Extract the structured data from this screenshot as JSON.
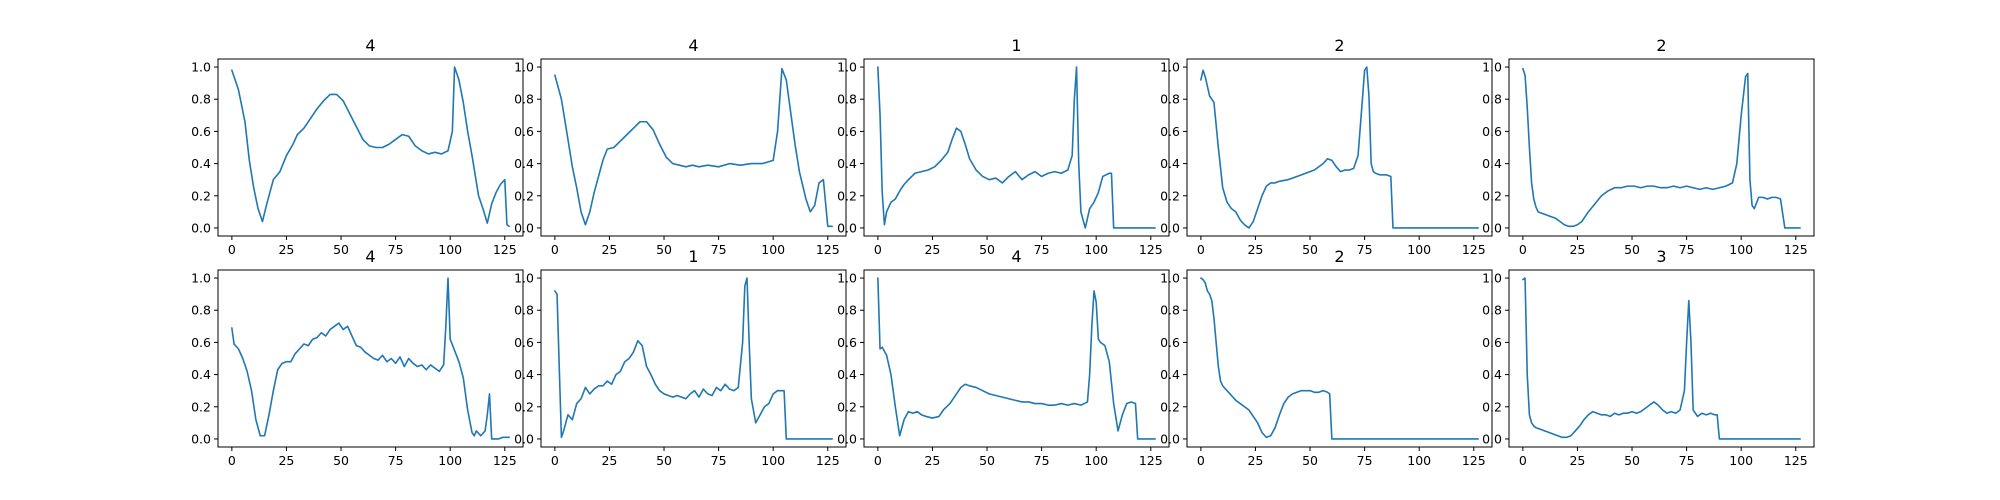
{
  "chart_data": [
    {
      "type": "line",
      "title": "4",
      "xlim": [
        -6.35,
        133.35
      ],
      "ylim": [
        -0.05,
        1.05
      ],
      "xticks": [
        "0",
        "25",
        "50",
        "75",
        "100",
        "125"
      ],
      "yticks": [
        "0.0",
        "0.2",
        "0.4",
        "0.6",
        "0.8",
        "1.0"
      ],
      "grid": false,
      "line_color": "#1f77b4",
      "x": [
        0,
        3,
        6,
        8,
        10,
        12,
        14,
        16,
        19,
        22,
        25,
        28,
        30,
        33,
        36,
        39,
        42,
        45,
        48,
        51,
        54,
        57,
        60,
        63,
        66,
        69,
        72,
        75,
        78,
        81,
        84,
        87,
        90,
        93,
        96,
        99,
        101,
        102,
        104,
        106,
        108,
        110,
        113,
        115,
        117,
        119,
        121,
        123,
        125,
        126,
        127
      ],
      "y": [
        0.98,
        0.86,
        0.66,
        0.42,
        0.25,
        0.12,
        0.04,
        0.15,
        0.3,
        0.35,
        0.45,
        0.52,
        0.58,
        0.62,
        0.68,
        0.74,
        0.79,
        0.83,
        0.83,
        0.79,
        0.71,
        0.63,
        0.55,
        0.51,
        0.5,
        0.5,
        0.52,
        0.55,
        0.58,
        0.57,
        0.51,
        0.48,
        0.46,
        0.47,
        0.46,
        0.48,
        0.6,
        1.0,
        0.92,
        0.78,
        0.6,
        0.45,
        0.2,
        0.12,
        0.03,
        0.15,
        0.22,
        0.27,
        0.3,
        0.02,
        0.01
      ]
    },
    {
      "type": "line",
      "title": "4",
      "xlim": [
        -6.35,
        133.35
      ],
      "ylim": [
        -0.05,
        1.05
      ],
      "xticks": [
        "0",
        "25",
        "50",
        "75",
        "100",
        "125"
      ],
      "yticks": [
        "0.0",
        "0.2",
        "0.4",
        "0.6",
        "0.8",
        "1.0"
      ],
      "grid": false,
      "line_color": "#1f77b4",
      "x": [
        0,
        3,
        6,
        8,
        10,
        12,
        14,
        16,
        18,
        20,
        22,
        24,
        27,
        30,
        33,
        36,
        39,
        42,
        45,
        48,
        51,
        54,
        57,
        60,
        63,
        66,
        70,
        75,
        80,
        85,
        90,
        95,
        100,
        102,
        104,
        106,
        108,
        110,
        112,
        115,
        117,
        119,
        121,
        123,
        125,
        127
      ],
      "y": [
        0.95,
        0.8,
        0.55,
        0.38,
        0.25,
        0.1,
        0.02,
        0.1,
        0.22,
        0.32,
        0.42,
        0.49,
        0.5,
        0.54,
        0.58,
        0.62,
        0.66,
        0.66,
        0.61,
        0.52,
        0.44,
        0.4,
        0.39,
        0.38,
        0.39,
        0.38,
        0.39,
        0.38,
        0.4,
        0.39,
        0.4,
        0.4,
        0.42,
        0.6,
        0.99,
        0.92,
        0.72,
        0.52,
        0.35,
        0.18,
        0.1,
        0.14,
        0.28,
        0.3,
        0.01,
        0.01
      ]
    },
    {
      "type": "line",
      "title": "1",
      "xlim": [
        -6.35,
        133.35
      ],
      "ylim": [
        -0.05,
        1.05
      ],
      "xticks": [
        "0",
        "25",
        "50",
        "75",
        "100",
        "125"
      ],
      "yticks": [
        "0.0",
        "0.2",
        "0.4",
        "0.6",
        "0.8",
        "1.0"
      ],
      "grid": false,
      "line_color": "#1f77b4",
      "x": [
        0,
        1,
        2,
        3,
        4,
        6,
        8,
        10,
        12,
        14,
        17,
        20,
        23,
        26,
        29,
        32,
        34,
        36,
        38,
        40,
        42,
        45,
        48,
        51,
        54,
        57,
        60,
        63,
        66,
        69,
        72,
        75,
        78,
        81,
        84,
        87,
        89,
        90,
        91,
        92,
        93,
        95,
        97,
        99,
        101,
        103,
        106,
        107,
        108,
        110,
        115,
        120,
        127
      ],
      "y": [
        1.0,
        0.7,
        0.22,
        0.02,
        0.1,
        0.16,
        0.18,
        0.23,
        0.27,
        0.3,
        0.34,
        0.35,
        0.36,
        0.38,
        0.42,
        0.47,
        0.55,
        0.62,
        0.6,
        0.52,
        0.43,
        0.36,
        0.32,
        0.3,
        0.31,
        0.28,
        0.32,
        0.35,
        0.3,
        0.33,
        0.35,
        0.32,
        0.34,
        0.35,
        0.34,
        0.36,
        0.45,
        0.8,
        1.0,
        0.4,
        0.1,
        0.0,
        0.12,
        0.16,
        0.22,
        0.32,
        0.34,
        0.34,
        0.0,
        0.0,
        0.0,
        0.0,
        0.0
      ]
    },
    {
      "type": "line",
      "title": "2",
      "xlim": [
        -6.35,
        133.35
      ],
      "ylim": [
        -0.05,
        1.05
      ],
      "xticks": [
        "0",
        "25",
        "50",
        "75",
        "100",
        "125"
      ],
      "yticks": [
        "0.0",
        "0.2",
        "0.4",
        "0.6",
        "0.8",
        "1.0"
      ],
      "grid": false,
      "line_color": "#1f77b4",
      "x": [
        0,
        1,
        2,
        4,
        6,
        8,
        10,
        12,
        14,
        16,
        18,
        20,
        22,
        24,
        26,
        28,
        30,
        32,
        34,
        36,
        40,
        44,
        48,
        52,
        56,
        58,
        60,
        62,
        64,
        66,
        68,
        70,
        72,
        74,
        75,
        76,
        77,
        78,
        79,
        80,
        82,
        85,
        87,
        88,
        89,
        92,
        100,
        110,
        127
      ],
      "y": [
        0.92,
        0.98,
        0.94,
        0.82,
        0.78,
        0.5,
        0.25,
        0.16,
        0.12,
        0.1,
        0.05,
        0.02,
        0.0,
        0.04,
        0.12,
        0.2,
        0.26,
        0.28,
        0.28,
        0.29,
        0.3,
        0.32,
        0.34,
        0.36,
        0.4,
        0.43,
        0.42,
        0.38,
        0.35,
        0.36,
        0.36,
        0.37,
        0.45,
        0.8,
        0.98,
        1.0,
        0.82,
        0.4,
        0.35,
        0.34,
        0.33,
        0.33,
        0.32,
        0.0,
        0.0,
        0.0,
        0.0,
        0.0,
        0.0
      ]
    },
    {
      "type": "line",
      "title": "2",
      "xlim": [
        -6.35,
        133.35
      ],
      "ylim": [
        -0.05,
        1.05
      ],
      "xticks": [
        "0",
        "25",
        "50",
        "75",
        "100",
        "125"
      ],
      "yticks": [
        "0.0",
        "0.2",
        "0.4",
        "0.6",
        "0.8",
        "1.0"
      ],
      "grid": false,
      "line_color": "#1f77b4",
      "x": [
        0,
        1,
        2,
        3,
        4,
        5,
        6,
        7,
        9,
        11,
        13,
        15,
        17,
        19,
        21,
        23,
        25,
        27,
        30,
        33,
        36,
        39,
        42,
        45,
        48,
        51,
        54,
        57,
        60,
        63,
        66,
        69,
        72,
        75,
        78,
        81,
        84,
        87,
        90,
        93,
        96,
        98,
        100,
        102,
        103,
        104,
        105,
        106,
        108,
        110,
        112,
        114,
        116,
        118,
        120,
        122,
        127
      ],
      "y": [
        0.99,
        0.95,
        0.75,
        0.5,
        0.28,
        0.18,
        0.13,
        0.1,
        0.09,
        0.08,
        0.07,
        0.06,
        0.04,
        0.02,
        0.01,
        0.01,
        0.02,
        0.04,
        0.1,
        0.15,
        0.2,
        0.23,
        0.25,
        0.25,
        0.26,
        0.26,
        0.25,
        0.26,
        0.26,
        0.25,
        0.25,
        0.26,
        0.25,
        0.26,
        0.25,
        0.24,
        0.25,
        0.24,
        0.25,
        0.26,
        0.28,
        0.4,
        0.7,
        0.94,
        0.96,
        0.3,
        0.14,
        0.12,
        0.19,
        0.19,
        0.18,
        0.19,
        0.19,
        0.18,
        0.0,
        0.0,
        0.0
      ]
    },
    {
      "type": "line",
      "title": "4",
      "xlim": [
        -6.35,
        133.35
      ],
      "ylim": [
        -0.05,
        1.05
      ],
      "xticks": [
        "0",
        "25",
        "50",
        "75",
        "100",
        "125"
      ],
      "yticks": [
        "0.0",
        "0.2",
        "0.4",
        "0.6",
        "0.8",
        "1.0"
      ],
      "grid": false,
      "line_color": "#1f77b4",
      "x": [
        0,
        1,
        3,
        5,
        7,
        9,
        11,
        13,
        15,
        17,
        19,
        21,
        23,
        25,
        27,
        29,
        31,
        33,
        35,
        37,
        39,
        41,
        43,
        45,
        47,
        49,
        51,
        53,
        55,
        57,
        59,
        61,
        63,
        65,
        67,
        69,
        71,
        73,
        75,
        77,
        79,
        81,
        83,
        85,
        87,
        89,
        91,
        93,
        95,
        97,
        98,
        99,
        100,
        102,
        104,
        106,
        108,
        110,
        111,
        112,
        114,
        116,
        117,
        118,
        119,
        120,
        122,
        124,
        126,
        127
      ],
      "y": [
        0.69,
        0.59,
        0.56,
        0.5,
        0.42,
        0.3,
        0.12,
        0.02,
        0.02,
        0.15,
        0.3,
        0.43,
        0.47,
        0.48,
        0.48,
        0.53,
        0.56,
        0.59,
        0.58,
        0.62,
        0.63,
        0.66,
        0.64,
        0.68,
        0.7,
        0.72,
        0.68,
        0.7,
        0.64,
        0.58,
        0.57,
        0.54,
        0.52,
        0.5,
        0.49,
        0.52,
        0.48,
        0.5,
        0.47,
        0.51,
        0.45,
        0.5,
        0.47,
        0.45,
        0.46,
        0.43,
        0.46,
        0.44,
        0.42,
        0.46,
        0.7,
        1.0,
        0.62,
        0.55,
        0.48,
        0.38,
        0.18,
        0.04,
        0.02,
        0.05,
        0.02,
        0.05,
        0.15,
        0.28,
        0.0,
        0.0,
        0.0,
        0.01,
        0.01,
        0.01
      ]
    },
    {
      "type": "line",
      "title": "1",
      "xlim": [
        -6.35,
        133.35
      ],
      "ylim": [
        -0.05,
        1.05
      ],
      "xticks": [
        "0",
        "25",
        "50",
        "75",
        "100",
        "125"
      ],
      "yticks": [
        "0.0",
        "0.2",
        "0.4",
        "0.6",
        "0.8",
        "1.0"
      ],
      "grid": false,
      "line_color": "#1f77b4",
      "x": [
        0,
        1,
        2,
        3,
        4,
        6,
        8,
        10,
        12,
        14,
        16,
        18,
        20,
        22,
        24,
        26,
        28,
        30,
        32,
        34,
        36,
        38,
        40,
        42,
        44,
        46,
        48,
        50,
        52,
        54,
        56,
        58,
        60,
        62,
        64,
        66,
        68,
        70,
        72,
        74,
        76,
        78,
        80,
        82,
        84,
        86,
        87,
        88,
        89,
        90,
        92,
        94,
        96,
        98,
        100,
        102,
        104,
        105,
        106,
        110,
        115,
        120,
        127
      ],
      "y": [
        0.92,
        0.9,
        0.45,
        0.01,
        0.05,
        0.15,
        0.12,
        0.22,
        0.25,
        0.32,
        0.28,
        0.31,
        0.33,
        0.33,
        0.36,
        0.34,
        0.4,
        0.42,
        0.48,
        0.5,
        0.54,
        0.61,
        0.58,
        0.45,
        0.4,
        0.34,
        0.3,
        0.28,
        0.27,
        0.26,
        0.27,
        0.26,
        0.25,
        0.28,
        0.3,
        0.26,
        0.31,
        0.28,
        0.27,
        0.32,
        0.3,
        0.34,
        0.31,
        0.3,
        0.32,
        0.6,
        0.95,
        1.0,
        0.6,
        0.25,
        0.1,
        0.15,
        0.2,
        0.22,
        0.28,
        0.3,
        0.3,
        0.3,
        0.0,
        0.0,
        0.0,
        0.0,
        0.0
      ]
    },
    {
      "type": "line",
      "title": "4",
      "xlim": [
        -6.35,
        133.35
      ],
      "ylim": [
        -0.05,
        1.05
      ],
      "xticks": [
        "0",
        "25",
        "50",
        "75",
        "100",
        "125"
      ],
      "yticks": [
        "0.0",
        "0.2",
        "0.4",
        "0.6",
        "0.8",
        "1.0"
      ],
      "grid": false,
      "line_color": "#1f77b4",
      "x": [
        0,
        1,
        2,
        4,
        6,
        8,
        10,
        12,
        14,
        16,
        18,
        20,
        22,
        25,
        28,
        30,
        33,
        36,
        38,
        40,
        42,
        45,
        48,
        51,
        54,
        57,
        60,
        63,
        66,
        69,
        72,
        75,
        78,
        81,
        84,
        87,
        90,
        93,
        96,
        97,
        98,
        99,
        100,
        101,
        102,
        104,
        106,
        108,
        110,
        112,
        114,
        116,
        118,
        119,
        120,
        122,
        124,
        126,
        127
      ],
      "y": [
        1.0,
        0.56,
        0.57,
        0.52,
        0.4,
        0.2,
        0.02,
        0.12,
        0.17,
        0.16,
        0.17,
        0.15,
        0.14,
        0.13,
        0.14,
        0.18,
        0.22,
        0.28,
        0.32,
        0.34,
        0.33,
        0.32,
        0.3,
        0.28,
        0.27,
        0.26,
        0.25,
        0.24,
        0.23,
        0.23,
        0.22,
        0.22,
        0.21,
        0.21,
        0.22,
        0.21,
        0.22,
        0.21,
        0.23,
        0.4,
        0.7,
        0.92,
        0.85,
        0.62,
        0.6,
        0.58,
        0.48,
        0.22,
        0.05,
        0.15,
        0.22,
        0.23,
        0.22,
        0.0,
        0.0,
        0.0,
        0.0,
        0.0,
        0.0
      ]
    },
    {
      "type": "line",
      "title": "2",
      "xlim": [
        -6.35,
        133.35
      ],
      "ylim": [
        -0.05,
        1.05
      ],
      "xticks": [
        "0",
        "25",
        "50",
        "75",
        "100",
        "125"
      ],
      "yticks": [
        "0.0",
        "0.2",
        "0.4",
        "0.6",
        "0.8",
        "1.0"
      ],
      "grid": false,
      "line_color": "#1f77b4",
      "x": [
        0,
        1,
        2,
        3,
        4,
        5,
        6,
        7,
        8,
        9,
        10,
        12,
        14,
        16,
        18,
        20,
        22,
        24,
        26,
        28,
        30,
        32,
        34,
        36,
        38,
        40,
        42,
        44,
        46,
        48,
        50,
        52,
        54,
        56,
        58,
        59,
        60,
        62,
        70,
        80,
        90,
        100,
        110,
        120,
        127
      ],
      "y": [
        1.0,
        0.99,
        0.97,
        0.92,
        0.9,
        0.86,
        0.75,
        0.6,
        0.45,
        0.36,
        0.33,
        0.3,
        0.27,
        0.24,
        0.22,
        0.2,
        0.18,
        0.14,
        0.1,
        0.04,
        0.01,
        0.02,
        0.07,
        0.15,
        0.22,
        0.26,
        0.28,
        0.29,
        0.3,
        0.3,
        0.3,
        0.29,
        0.29,
        0.3,
        0.29,
        0.28,
        0.0,
        0.0,
        0.0,
        0.0,
        0.0,
        0.0,
        0.0,
        0.0,
        0.0
      ]
    },
    {
      "type": "line",
      "title": "3",
      "xlim": [
        -6.35,
        133.35
      ],
      "ylim": [
        -0.05,
        1.05
      ],
      "xticks": [
        "0",
        "25",
        "50",
        "75",
        "100",
        "125"
      ],
      "yticks": [
        "0.0",
        "0.2",
        "0.4",
        "0.6",
        "0.8",
        "1.0"
      ],
      "grid": false,
      "line_color": "#1f77b4",
      "x": [
        0,
        1,
        2,
        3,
        4,
        5,
        6,
        8,
        10,
        12,
        14,
        16,
        18,
        20,
        22,
        24,
        26,
        28,
        30,
        32,
        34,
        36,
        38,
        40,
        42,
        44,
        46,
        48,
        50,
        52,
        54,
        56,
        58,
        60,
        62,
        64,
        66,
        68,
        70,
        72,
        74,
        75,
        76,
        77,
        78,
        80,
        82,
        84,
        86,
        88,
        89,
        90,
        95,
        100,
        110,
        120,
        127
      ],
      "y": [
        0.99,
        1.0,
        0.4,
        0.15,
        0.1,
        0.08,
        0.07,
        0.06,
        0.05,
        0.04,
        0.03,
        0.02,
        0.01,
        0.01,
        0.02,
        0.05,
        0.08,
        0.12,
        0.15,
        0.17,
        0.16,
        0.15,
        0.15,
        0.14,
        0.16,
        0.15,
        0.16,
        0.16,
        0.17,
        0.16,
        0.17,
        0.19,
        0.21,
        0.23,
        0.21,
        0.18,
        0.16,
        0.17,
        0.16,
        0.18,
        0.3,
        0.6,
        0.86,
        0.6,
        0.18,
        0.14,
        0.16,
        0.15,
        0.16,
        0.15,
        0.15,
        0.0,
        0.0,
        0.0,
        0.0,
        0.0,
        0.0
      ]
    }
  ]
}
